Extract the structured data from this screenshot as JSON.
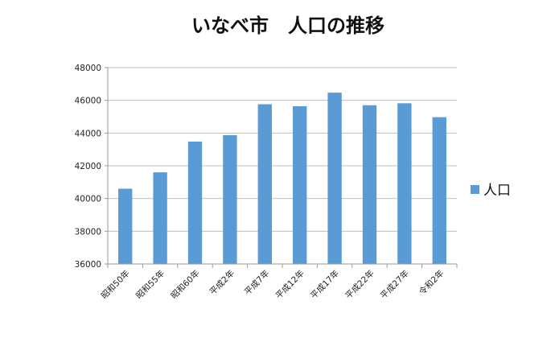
{
  "chart_data": {
    "type": "bar",
    "title": "いなべ市　人口の推移",
    "xlabel": "",
    "ylabel": "",
    "categories": [
      "昭和50年",
      "昭和55年",
      "昭和60年",
      "平成2年",
      "平成7年",
      "平成12年",
      "平成17年",
      "平成22年",
      "平成27年",
      "令和2年"
    ],
    "series": [
      {
        "name": "人口",
        "values": [
          40600,
          41600,
          43480,
          43870,
          45760,
          45640,
          46470,
          45700,
          45820,
          44970
        ]
      }
    ],
    "ylim": [
      36000,
      48000
    ],
    "yticks": [
      36000,
      38000,
      40000,
      42000,
      44000,
      46000,
      48000
    ],
    "grid": true,
    "legend_position": "right",
    "colors": {
      "bar": "#5B9BD5",
      "grid": "#BFBFBF",
      "axis": "#9A9A9A"
    }
  }
}
